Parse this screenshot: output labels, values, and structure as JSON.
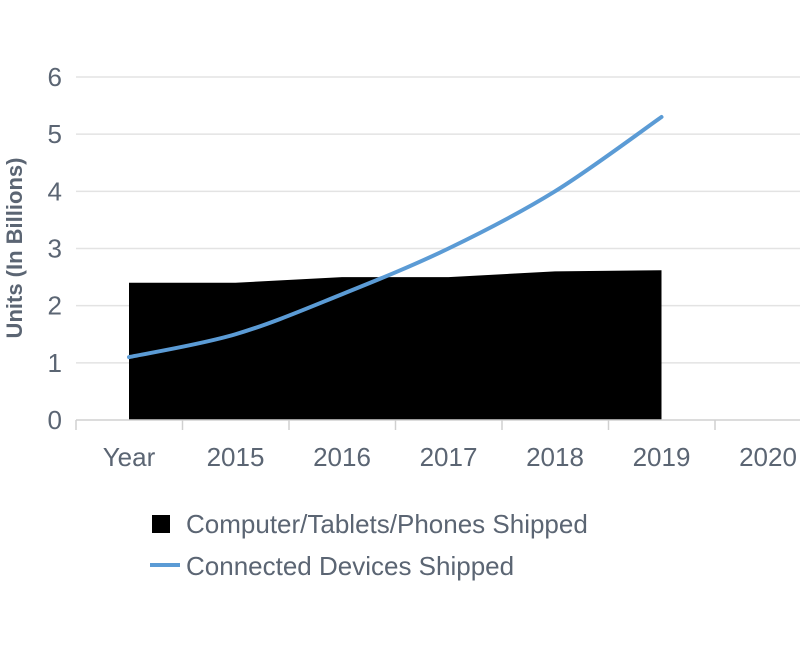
{
  "chart_data": {
    "type": "area",
    "categories": [
      "Year",
      "2015",
      "2016",
      "2017",
      "2018",
      "2019",
      "2020"
    ],
    "ylabel": "Units (In Billions)",
    "ylim": [
      0,
      6
    ],
    "yticks": [
      0,
      1,
      2,
      3,
      4,
      5,
      6
    ],
    "grid": true,
    "legend_position": "bottom",
    "series": [
      {
        "name": "Computer/Tablets/Phones Shipped",
        "type": "area",
        "color": "#000000",
        "values": [
          2.4,
          2.4,
          2.5,
          2.5,
          2.6,
          2.62,
          null
        ]
      },
      {
        "name": "Connected Devices Shipped",
        "type": "line",
        "color": "#5b9bd5",
        "values": [
          1.1,
          1.5,
          2.2,
          3.0,
          4.0,
          5.3,
          null
        ]
      }
    ]
  }
}
